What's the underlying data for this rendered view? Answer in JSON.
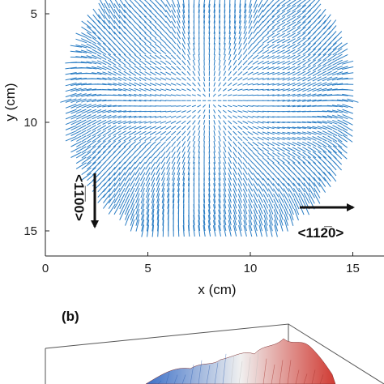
{
  "chart_data": {
    "type": "quiver",
    "xlabel": "x (cm)",
    "ylabel": "y (cm)",
    "xlim": [
      0,
      16
    ],
    "ylim": [
      15.8,
      4.5
    ],
    "y_axis_inverted": true,
    "x_ticks": [
      "0",
      "5",
      "10",
      "15"
    ],
    "y_ticks": [
      "5",
      "10",
      "15"
    ],
    "x_tick_values": [
      0,
      5,
      10,
      15
    ],
    "y_tick_values": [
      5,
      10,
      15
    ],
    "vector_field": {
      "shape": "disk",
      "center": [
        8.0,
        9.0
      ],
      "radius": 7.0,
      "grid_step": 0.25,
      "color": "#2a7dc4",
      "pattern": "divergent_from_center"
    },
    "annotations": [
      {
        "name": "direction-1100",
        "text": "<1̅1̅00>",
        "plain": "<1100>",
        "arrow": "down"
      },
      {
        "name": "direction-1120",
        "text": "<112̅0>",
        "plain": "<1120>",
        "arrow": "right"
      }
    ]
  },
  "panel_b": {
    "label": "(b)",
    "surface_colors": [
      "#3b6fc7",
      "#f2f2f2",
      "#d03a32"
    ]
  }
}
